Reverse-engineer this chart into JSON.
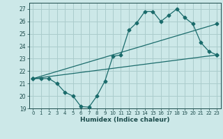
{
  "bg_color": "#cce8e8",
  "grid_color": "#aacccc",
  "line_color": "#1a6b6b",
  "xlabel": "Humidex (Indice chaleur)",
  "xlim": [
    -0.5,
    23.5
  ],
  "ylim": [
    19,
    27.5
  ],
  "yticks": [
    19,
    20,
    21,
    22,
    23,
    24,
    25,
    26,
    27
  ],
  "xticks": [
    0,
    1,
    2,
    3,
    4,
    5,
    6,
    7,
    8,
    9,
    10,
    11,
    12,
    13,
    14,
    15,
    16,
    17,
    18,
    19,
    20,
    21,
    22,
    23
  ],
  "line1_x": [
    0,
    1,
    2,
    3,
    4,
    5,
    6,
    7,
    8,
    9,
    10,
    11,
    12,
    13,
    14,
    15,
    16,
    17,
    18,
    19,
    20,
    21,
    22,
    23
  ],
  "line1_y": [
    21.4,
    21.4,
    21.4,
    21.0,
    20.3,
    20.0,
    19.15,
    19.1,
    20.0,
    21.2,
    23.2,
    23.3,
    25.3,
    25.9,
    26.8,
    26.8,
    26.0,
    26.5,
    27.0,
    26.3,
    25.8,
    24.3,
    23.6,
    23.3
  ],
  "line2_x": [
    0,
    23
  ],
  "line2_y": [
    21.4,
    23.3
  ],
  "line3_x": [
    0,
    23
  ],
  "line3_y": [
    21.4,
    25.8
  ]
}
